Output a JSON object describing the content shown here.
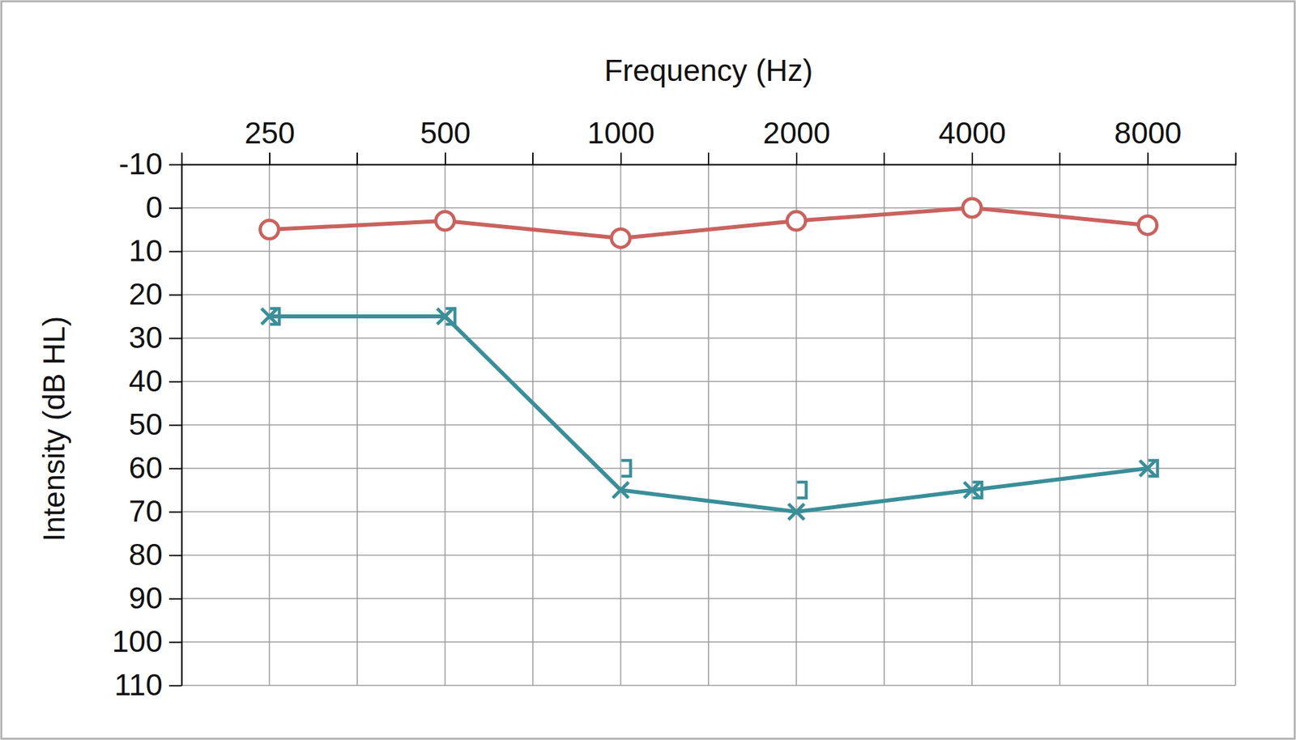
{
  "chart_data": {
    "type": "line",
    "x_label": "Frequency (Hz)",
    "y_label": "Intensity (dB HL)",
    "categories": [
      "250",
      "500",
      "1000",
      "2000",
      "4000",
      "8000"
    ],
    "ylim": [
      110,
      -10
    ],
    "yticks": [
      -10,
      0,
      10,
      20,
      30,
      40,
      50,
      60,
      70,
      80,
      90,
      100,
      110
    ],
    "grid": true,
    "series": [
      {
        "color": "#c9625e",
        "marker": "circle",
        "line_style": "solid",
        "values": [
          5,
          3,
          7,
          3,
          0,
          4
        ]
      },
      {
        "color": "#3a8e98",
        "marker": "x",
        "line_style": "solid",
        "values": [
          25,
          25,
          65,
          70,
          65,
          60
        ]
      },
      {
        "color": "#3a8e98",
        "marker": "bracket",
        "line_style": "none",
        "values": [
          25,
          25,
          60,
          65,
          65,
          60
        ]
      }
    ]
  }
}
